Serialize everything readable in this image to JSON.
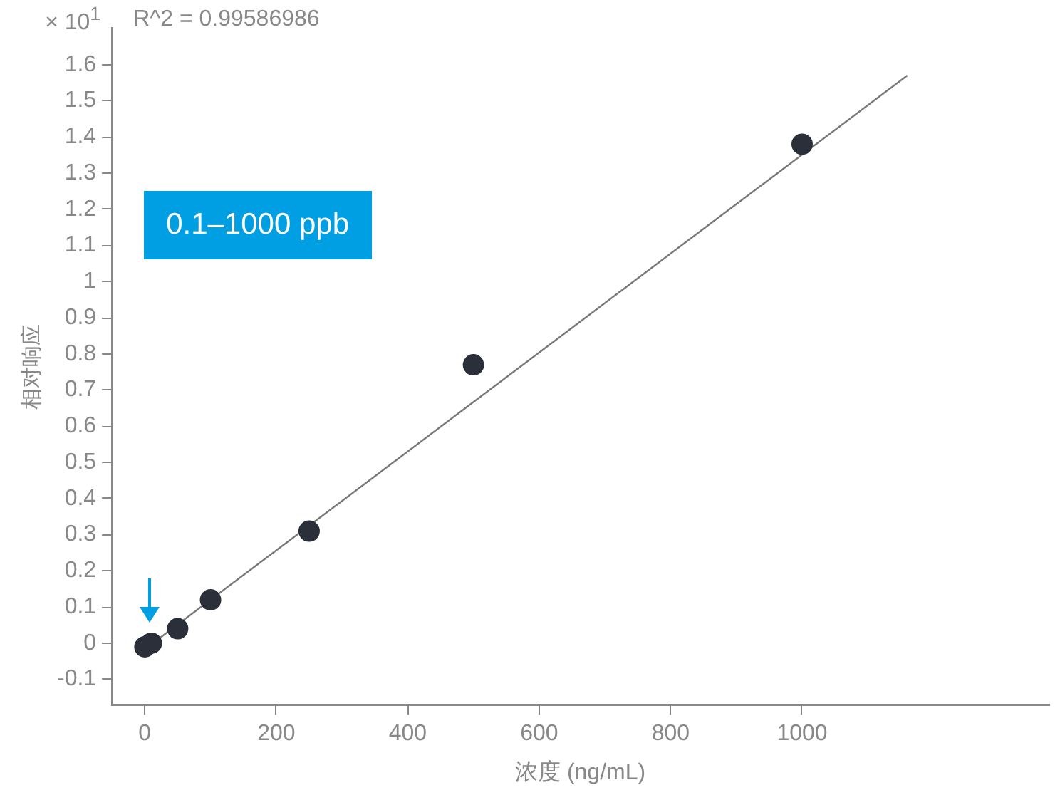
{
  "chart_data": {
    "type": "scatter",
    "xlabel": "浓度 (ng/mL)",
    "ylabel": "相对响应",
    "annotations": [
      "× 10$^{1}$",
      "R^2 = 0.99586986",
      "0.1–1000 ppb"
    ],
    "xlim": [
      -50,
      1375
    ],
    "xticks": [
      0,
      200,
      400,
      600,
      800,
      1000
    ],
    "ylim": [
      -0.17,
      1.7
    ],
    "yticks": [
      -0.1,
      0,
      0.1,
      0.2,
      0.3,
      0.4,
      0.5,
      0.6,
      0.7,
      0.8,
      0.9,
      1,
      1.1,
      1.2,
      1.3,
      1.4,
      1.5,
      1.6
    ],
    "grid": false,
    "legend": false,
    "series": [
      {
        "color": "#2b2f3a",
        "marker": "circle",
        "x": [
          0.1,
          10,
          50,
          100,
          250,
          500,
          1000
        ],
        "values": [
          -0.01,
          0,
          0.04,
          0.12,
          0.31,
          0.77,
          1.38
        ]
      },
      {
        "type": "line",
        "color": "#777777",
        "x": [
          5,
          1160
        ],
        "values": [
          -0.01,
          1.57
        ]
      }
    ]
  }
}
